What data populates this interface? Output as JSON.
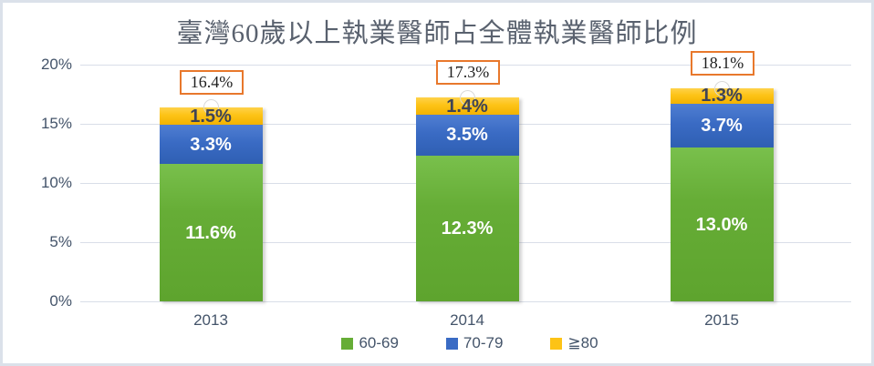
{
  "frame": {
    "border_color": "#dbe1ea",
    "background_color": "#ffffff"
  },
  "chart_data": {
    "type": "bar",
    "stacked": true,
    "title": "臺灣60歲以上執業醫師占全體執業醫師比例",
    "categories": [
      "2013",
      "2014",
      "2015"
    ],
    "series": [
      {
        "name": "60-69",
        "color": "#66ad36",
        "css_class": "seg-green",
        "label_color": "#ffffff",
        "values": [
          11.6,
          12.3,
          13.0
        ],
        "labels": [
          "11.6%",
          "12.3%",
          "13.0%"
        ]
      },
      {
        "name": "70-79",
        "color": "#3a6bc4",
        "css_class": "seg-blue",
        "label_color": "#ffffff",
        "values": [
          3.3,
          3.5,
          3.7
        ],
        "labels": [
          "3.3%",
          "3.5%",
          "3.7%"
        ]
      },
      {
        "name": "≧80",
        "color": "#fdc316",
        "css_class": "seg-yellow",
        "label_color": "#3f4455",
        "values": [
          1.5,
          1.4,
          1.3
        ],
        "labels": [
          "1.5%",
          "1.4%",
          "1.3%"
        ]
      }
    ],
    "totals": [
      "16.4%",
      "17.3%",
      "18.1%"
    ],
    "total_label_border_color": "#e8782c",
    "y_axis": {
      "tick_labels": [
        "0%",
        "5%",
        "10%",
        "15%",
        "20%"
      ],
      "tick_values": [
        0,
        5,
        10,
        15,
        20
      ],
      "min": 0,
      "max": 20,
      "grid": true,
      "gridline_color": "#d9dee8",
      "tick_color": "#44546a"
    },
    "legend": {
      "position": "bottom",
      "items": [
        {
          "label": "60-69",
          "color": "#66ad36"
        },
        {
          "label": "70-79",
          "color": "#3a6bc4"
        },
        {
          "label": "≧80",
          "color": "#fdc316"
        }
      ]
    }
  }
}
